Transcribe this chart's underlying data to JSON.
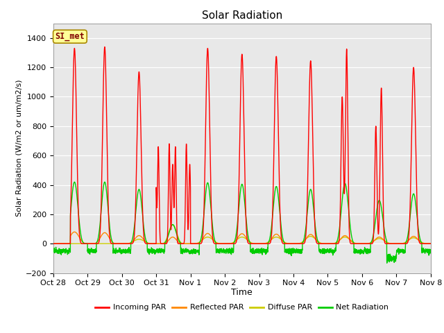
{
  "title": "Solar Radiation",
  "xlabel": "Time",
  "ylabel": "Solar Radiation (W/m2 or um/m2/s)",
  "ylim": [
    -200,
    1500
  ],
  "yticks": [
    -200,
    0,
    200,
    400,
    600,
    800,
    1000,
    1200,
    1400
  ],
  "background_color": "#e8e8e8",
  "figure_color": "#ffffff",
  "annotation_text": "SI_met",
  "annotation_bg": "#ffff99",
  "annotation_border": "#aa8800",
  "annotation_text_color": "#800000",
  "series": {
    "incoming_par": {
      "color": "#ff0000",
      "label": "Incoming PAR",
      "lw": 1.0
    },
    "reflected_par": {
      "color": "#ff8800",
      "label": "Reflected PAR",
      "lw": 1.0
    },
    "diffuse_par": {
      "color": "#cccc00",
      "label": "Diffuse PAR",
      "lw": 1.0
    },
    "net_radiation": {
      "color": "#00cc00",
      "label": "Net Radiation",
      "lw": 1.0
    }
  },
  "x_tick_labels": [
    "Oct 28",
    "Oct 29",
    "Oct 30",
    "Oct 31",
    "Nov 1",
    "Nov 2",
    "Nov 3",
    "Nov 4",
    "Nov 5",
    "Nov 6",
    "Nov 7",
    "Nov 8"
  ],
  "num_days": 11,
  "points_per_day": 288
}
